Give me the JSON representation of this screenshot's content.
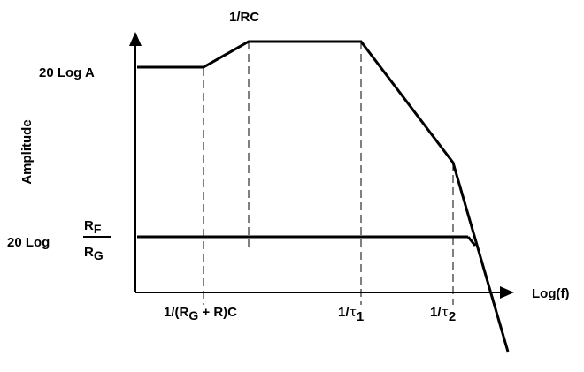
{
  "diagram": {
    "y_axis_label": "Amplitude",
    "x_axis_label": "Log(f)",
    "level_high": "20 Log A",
    "level_low_prefix": "20 Log",
    "level_low_num_main": "R",
    "level_low_num_sub": "F",
    "level_low_den_main": "R",
    "level_low_den_sub": "G",
    "marker_top": "1/RC",
    "marker1_prefix": "1/(R",
    "marker1_sub": "G",
    "marker1_suffix": " + R)C",
    "marker_tau1_prefix": "1/",
    "marker_tau1_symbol": "τ",
    "marker_tau1_sub": "1",
    "marker_tau2_prefix": "1/",
    "marker_tau2_symbol": "τ",
    "marker_tau2_sub": "2"
  }
}
